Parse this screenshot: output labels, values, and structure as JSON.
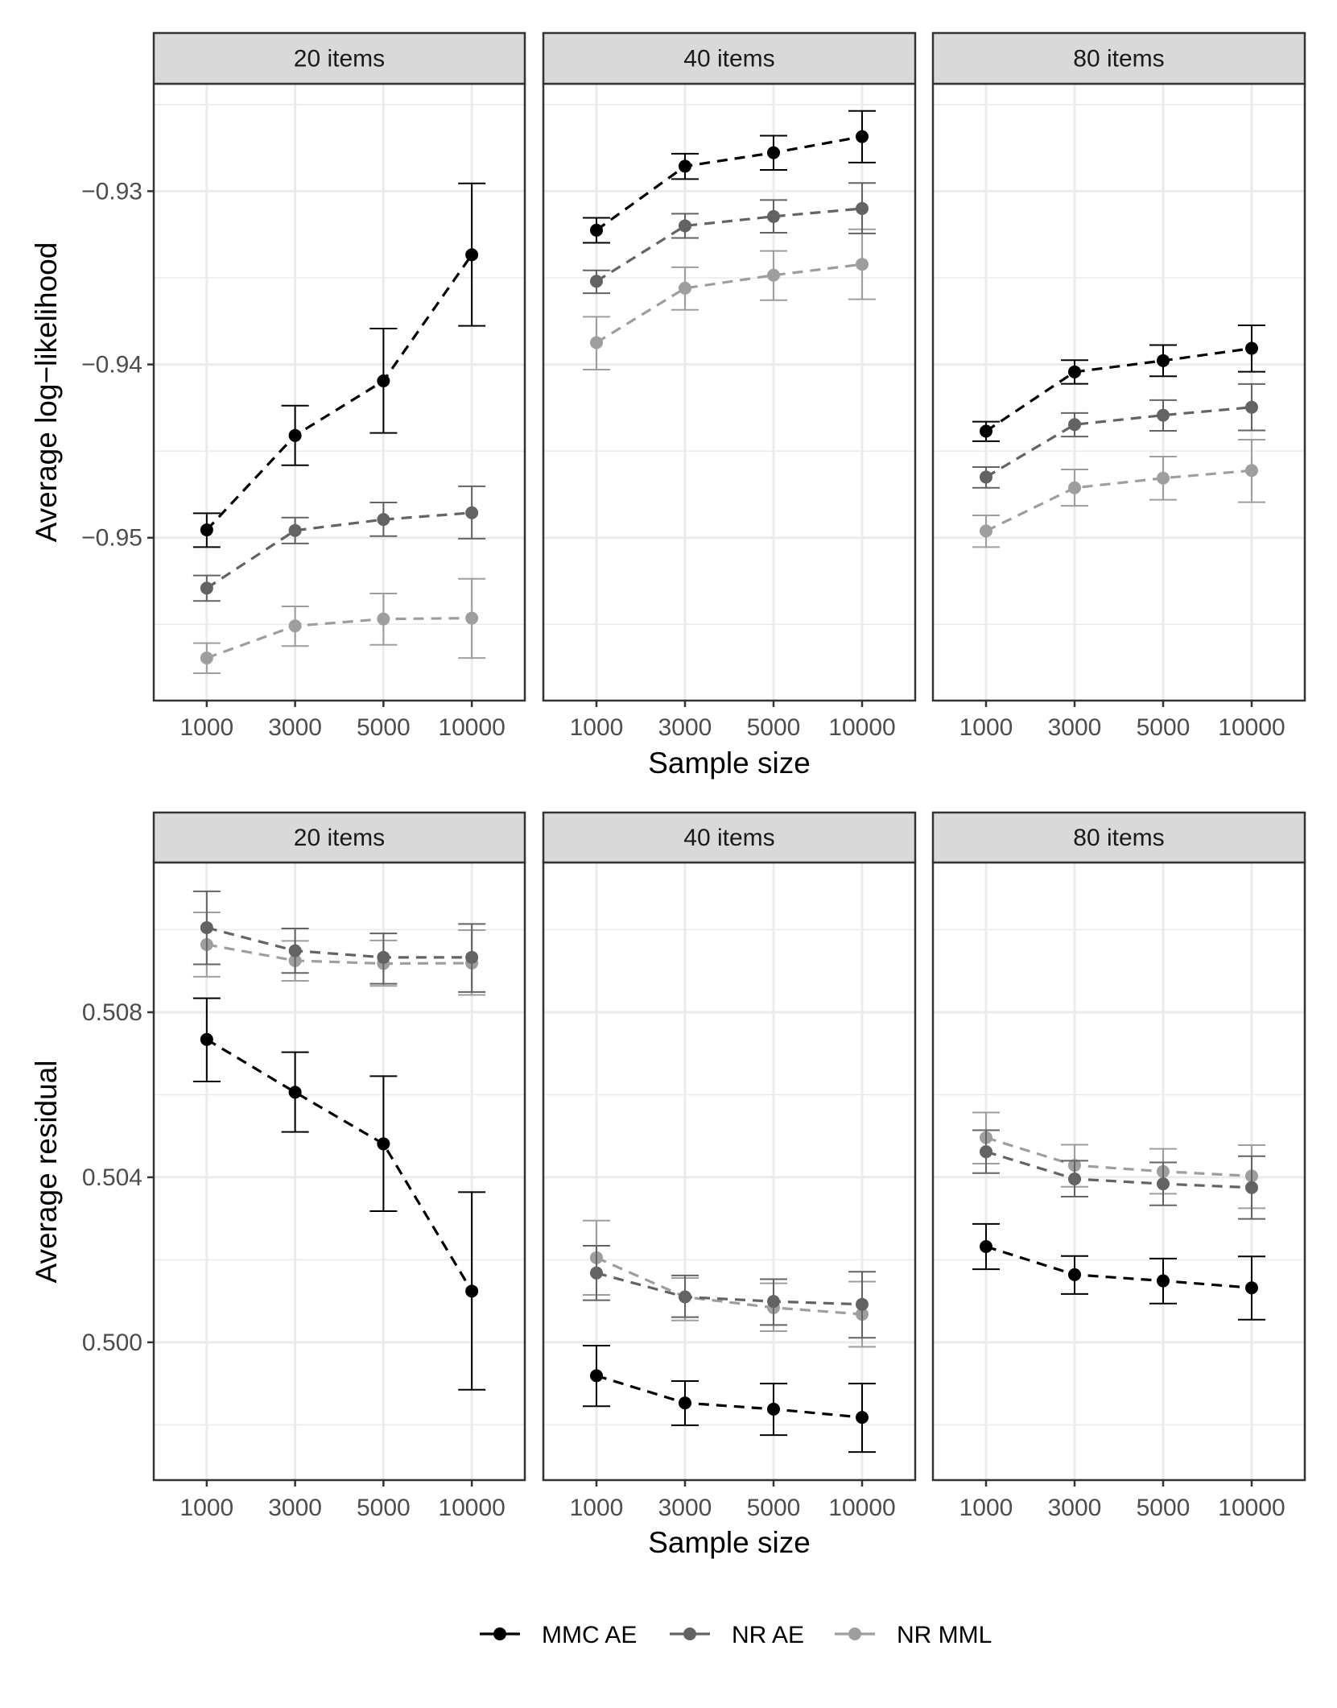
{
  "chart_data": [
    {
      "type": "line",
      "row": "top",
      "title": "",
      "xlabel": "Sample size",
      "ylabel": "Average log−likelihood",
      "x": [
        "1000",
        "3000",
        "5000",
        "10000"
      ],
      "ylim": [
        -0.9594,
        -0.9238
      ],
      "y_major_ticks": [
        -0.95,
        -0.94,
        -0.93
      ],
      "y_tick_labels": [
        "−0.95",
        "−0.94",
        "−0.93"
      ],
      "y_minor_ticks": [
        -0.955,
        -0.945,
        -0.935,
        -0.925
      ],
      "grid": true,
      "error_bars": true,
      "panels": [
        {
          "label": "20 items",
          "series": [
            {
              "name": "MMC AE",
              "values": [
                -0.94955,
                -0.9441,
                -0.94095,
                -0.93367
              ],
              "lower": [
                -0.95054,
                -0.94582,
                -0.94395,
                -0.93777
              ],
              "upper": [
                -0.94859,
                -0.94238,
                -0.93793,
                -0.92955
              ]
            },
            {
              "name": "NR AE",
              "values": [
                -0.95291,
                -0.94958,
                -0.94895,
                -0.94856
              ],
              "lower": [
                -0.95365,
                -0.95033,
                -0.94991,
                -0.95005
              ],
              "upper": [
                -0.95218,
                -0.94884,
                -0.94797,
                -0.94703
              ]
            },
            {
              "name": "NR MML",
              "values": [
                -0.95694,
                -0.95509,
                -0.95469,
                -0.95464
              ],
              "lower": [
                -0.95782,
                -0.95625,
                -0.95618,
                -0.95694
              ],
              "upper": [
                -0.95608,
                -0.95396,
                -0.95322,
                -0.95237
              ]
            }
          ]
        },
        {
          "label": "40 items",
          "series": [
            {
              "name": "MMC AE",
              "values": [
                -0.93225,
                -0.92856,
                -0.92778,
                -0.92685
              ],
              "lower": [
                -0.93298,
                -0.9293,
                -0.92877,
                -0.92835
              ],
              "upper": [
                -0.93154,
                -0.92784,
                -0.9268,
                -0.92537
              ]
            },
            {
              "name": "NR AE",
              "values": [
                -0.9352,
                -0.932,
                -0.93146,
                -0.931
              ],
              "lower": [
                -0.93589,
                -0.9327,
                -0.9324,
                -0.93244
              ],
              "upper": [
                -0.93457,
                -0.9313,
                -0.93051,
                -0.92953
              ]
            },
            {
              "name": "NR MML",
              "values": [
                -0.93874,
                -0.9356,
                -0.93485,
                -0.93422
              ],
              "lower": [
                -0.9403,
                -0.93685,
                -0.93629,
                -0.93624
              ],
              "upper": [
                -0.93725,
                -0.93439,
                -0.93345,
                -0.9322
              ]
            }
          ]
        },
        {
          "label": "80 items",
          "series": [
            {
              "name": "MMC AE",
              "values": [
                -0.94385,
                -0.94043,
                -0.93978,
                -0.93907
              ],
              "lower": [
                -0.94443,
                -0.94112,
                -0.94068,
                -0.94042
              ],
              "upper": [
                -0.9433,
                -0.93975,
                -0.93888,
                -0.93774
              ]
            },
            {
              "name": "NR AE",
              "values": [
                -0.9465,
                -0.94347,
                -0.94293,
                -0.94247
              ],
              "lower": [
                -0.94712,
                -0.94416,
                -0.94383,
                -0.94381
              ],
              "upper": [
                -0.94592,
                -0.9428,
                -0.94206,
                -0.94113
              ]
            },
            {
              "name": "NR MML",
              "values": [
                -0.94961,
                -0.94712,
                -0.94656,
                -0.94612
              ],
              "lower": [
                -0.95054,
                -0.94816,
                -0.94781,
                -0.94795
              ],
              "upper": [
                -0.94871,
                -0.94606,
                -0.94532,
                -0.94434
              ]
            }
          ]
        }
      ]
    },
    {
      "type": "line",
      "row": "bottom",
      "title": "",
      "xlabel": "Sample size",
      "ylabel": "Average residual",
      "x": [
        "1000",
        "3000",
        "5000",
        "10000"
      ],
      "ylim": [
        0.49666,
        0.51163
      ],
      "y_major_ticks": [
        0.5,
        0.504,
        0.508
      ],
      "y_tick_labels": [
        "0.500",
        "0.504",
        "0.508"
      ],
      "y_minor_ticks": [
        0.498,
        0.502,
        0.506,
        0.51
      ],
      "grid": true,
      "error_bars": true,
      "panels": [
        {
          "label": "20 items",
          "series": [
            {
              "name": "MMC AE",
              "values": [
                0.50734,
                0.50606,
                0.50481,
                0.50124
              ],
              "lower": [
                0.50632,
                0.5051,
                0.50318,
                0.49885
              ],
              "upper": [
                0.50834,
                0.50703,
                0.50645,
                0.50364
              ]
            },
            {
              "name": "NR AE",
              "values": [
                0.51005,
                0.50949,
                0.50933,
                0.50933
              ],
              "lower": [
                0.50916,
                0.50895,
                0.50869,
                0.50849
              ],
              "upper": [
                0.51093,
                0.51003,
                0.50991,
                0.51014
              ]
            },
            {
              "name": "NR MML",
              "values": [
                0.50964,
                0.50925,
                0.50918,
                0.50919
              ],
              "lower": [
                0.50886,
                0.50876,
                0.50864,
                0.50842
              ],
              "upper": [
                0.51042,
                0.50973,
                0.50974,
                0.50999
              ]
            }
          ]
        },
        {
          "label": "40 items",
          "series": [
            {
              "name": "MMC AE",
              "values": [
                0.49919,
                0.49853,
                0.49838,
                0.49818
              ],
              "lower": [
                0.49845,
                0.49799,
                0.49775,
                0.49734
              ],
              "upper": [
                0.49992,
                0.49906,
                0.499,
                0.499
              ]
            },
            {
              "name": "NR AE",
              "values": [
                0.50168,
                0.5011,
                0.50099,
                0.50092
              ],
              "lower": [
                0.50102,
                0.50061,
                0.50042,
                0.50011
              ],
              "upper": [
                0.50234,
                0.50162,
                0.50153,
                0.50171
              ]
            },
            {
              "name": "NR MML",
              "values": [
                0.50205,
                0.5011,
                0.50084,
                0.50068
              ],
              "lower": [
                0.50115,
                0.50053,
                0.50027,
                0.49989
              ],
              "upper": [
                0.50295,
                0.50156,
                0.50143,
                0.50147
              ]
            }
          ]
        },
        {
          "label": "80 items",
          "series": [
            {
              "name": "MMC AE",
              "values": [
                0.50232,
                0.50164,
                0.50149,
                0.50132
              ],
              "lower": [
                0.50177,
                0.50117,
                0.50094,
                0.50055
              ],
              "upper": [
                0.50287,
                0.50209,
                0.50203,
                0.50208
              ]
            },
            {
              "name": "NR AE",
              "values": [
                0.50462,
                0.50396,
                0.50384,
                0.50375
              ],
              "lower": [
                0.5041,
                0.50353,
                0.50332,
                0.50299
              ],
              "upper": [
                0.50514,
                0.5044,
                0.50436,
                0.50451
              ]
            },
            {
              "name": "NR MML",
              "values": [
                0.50496,
                0.50429,
                0.50414,
                0.50403
              ],
              "lower": [
                0.50433,
                0.50377,
                0.5036,
                0.50325
              ],
              "upper": [
                0.50557,
                0.50479,
                0.50469,
                0.50478
              ]
            }
          ]
        }
      ]
    }
  ],
  "legend": {
    "position": "bottom",
    "items": [
      {
        "name": "MMC AE",
        "color": "#000000"
      },
      {
        "name": "NR AE",
        "color": "#636363"
      },
      {
        "name": "NR MML",
        "color": "#9E9E9E"
      }
    ]
  },
  "colors": {
    "MMC AE": "#000000",
    "NR AE": "#636363",
    "NR MML": "#9E9E9E"
  }
}
